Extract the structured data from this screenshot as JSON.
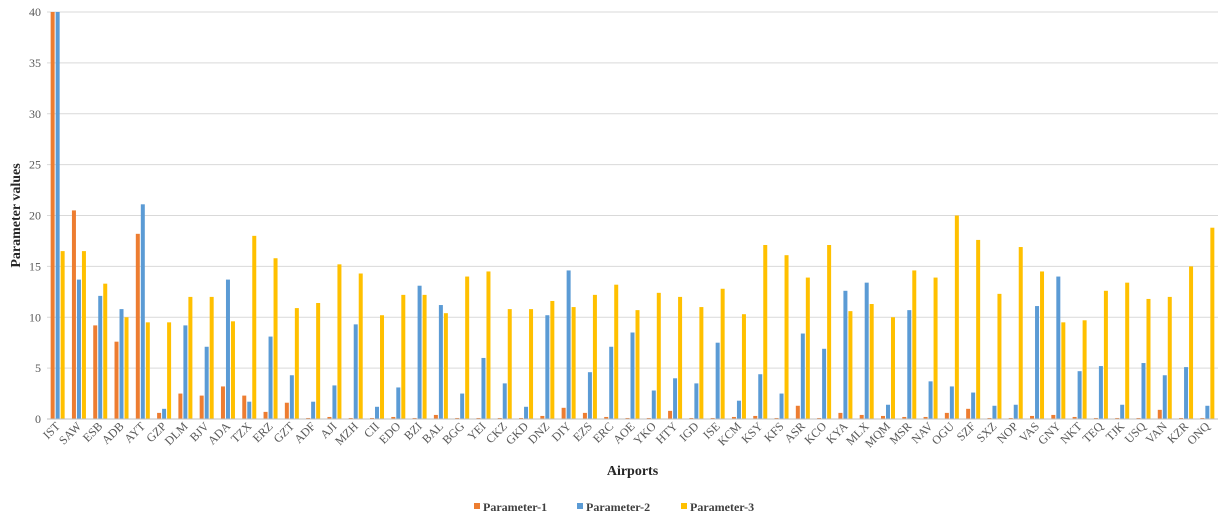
{
  "chart_data": {
    "type": "bar",
    "title": "",
    "xlabel": "Airports",
    "ylabel": "Parameter values",
    "ylim": [
      0,
      40
    ],
    "yticks": [
      0,
      5,
      10,
      15,
      20,
      25,
      30,
      35,
      40
    ],
    "grid": "horizontal",
    "legend_position": "bottom",
    "categories": [
      "IST",
      "SAW",
      "ESB",
      "ADB",
      "AYT",
      "GZP",
      "DLM",
      "BJV",
      "ADA",
      "TZX",
      "ERZ",
      "GZT",
      "ADF",
      "AJI",
      "MZH",
      "CII",
      "EDO",
      "BZI",
      "BAL",
      "BGG",
      "YEI",
      "CKZ",
      "GKD",
      "DNZ",
      "DIY",
      "EZS",
      "ERC",
      "AOE",
      "YKO",
      "HTY",
      "IGD",
      "ISE",
      "KCM",
      "KSY",
      "KFS",
      "ASR",
      "KCO",
      "KYA",
      "MLX",
      "MQM",
      "MSR",
      "NAV",
      "OGU",
      "SZF",
      "SXZ",
      "NOP",
      "VAS",
      "GNY",
      "NKT",
      "TEQ",
      "TJK",
      "USQ",
      "VAN",
      "KZR",
      "ONQ"
    ],
    "series": [
      {
        "name": "Parameter-1",
        "color": "#ED7D31",
        "values": [
          40,
          20.5,
          9.2,
          7.6,
          18.2,
          0.6,
          2.5,
          2.3,
          3.2,
          2.3,
          0.7,
          1.6,
          0.1,
          0.2,
          0.1,
          0.1,
          0.2,
          0.1,
          0.4,
          0.1,
          0.1,
          0.1,
          0.1,
          0.3,
          1.1,
          0.6,
          0.2,
          0.1,
          0.1,
          0.8,
          0.1,
          0.1,
          0.2,
          0.3,
          0.1,
          1.3,
          0.1,
          0.6,
          0.4,
          0.3,
          0.2,
          0.2,
          0.6,
          1.0,
          0.1,
          0.1,
          0.3,
          0.4,
          0.2,
          0.1,
          0.1,
          0.1,
          0.9,
          0.1,
          0.1
        ]
      },
      {
        "name": "Parameter-2",
        "color": "#5B9BD5",
        "values": [
          40,
          13.7,
          12.1,
          10.8,
          21.1,
          1.0,
          9.2,
          7.1,
          13.7,
          1.7,
          8.1,
          4.3,
          1.7,
          3.3,
          9.3,
          1.2,
          3.1,
          13.1,
          11.2,
          2.5,
          6.0,
          3.5,
          1.2,
          10.2,
          14.6,
          4.6,
          7.1,
          8.5,
          2.8,
          4.0,
          3.5,
          7.5,
          1.8,
          4.4,
          2.5,
          8.4,
          6.9,
          12.6,
          13.4,
          1.4,
          10.7,
          3.7,
          3.2,
          2.6,
          1.3,
          1.4,
          11.1,
          14.0,
          4.7,
          5.2,
          1.4,
          5.5,
          4.3,
          5.1,
          1.3
        ]
      },
      {
        "name": "Parameter-3",
        "color": "#FFC000",
        "values": [
          16.5,
          16.5,
          13.3,
          10.0,
          9.5,
          9.5,
          12.0,
          12.0,
          9.6,
          18.0,
          15.8,
          10.9,
          11.4,
          15.2,
          14.3,
          10.2,
          12.2,
          12.2,
          10.4,
          14.0,
          14.5,
          10.8,
          10.8,
          11.6,
          11.0,
          12.2,
          13.2,
          10.7,
          12.4,
          12.0,
          11.0,
          12.8,
          10.3,
          17.1,
          16.1,
          13.9,
          17.1,
          10.6,
          11.3,
          10.0,
          14.6,
          13.9,
          20.0,
          17.6,
          12.3,
          16.9,
          14.5,
          9.5,
          9.7,
          12.6,
          13.4,
          11.8,
          12.0,
          15.0,
          18.8
        ]
      }
    ]
  }
}
